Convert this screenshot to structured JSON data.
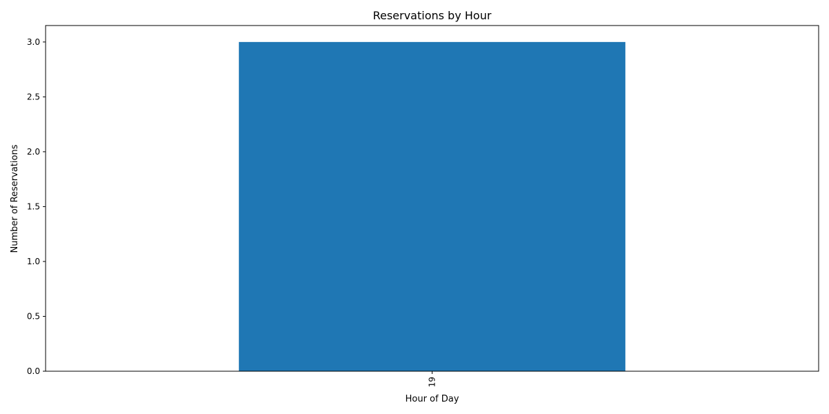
{
  "chart_data": {
    "type": "bar",
    "title": "Reservations by Hour",
    "xlabel": "Hour of Day",
    "ylabel": "Number of Reservations",
    "categories": [
      "19"
    ],
    "values": [
      3
    ],
    "ylim": [
      0,
      3.15
    ],
    "yticks": [
      0.0,
      0.5,
      1.0,
      1.5,
      2.0,
      2.5,
      3.0
    ],
    "ytick_labels": [
      "0.0",
      "0.5",
      "1.0",
      "1.5",
      "2.0",
      "2.5",
      "3.0"
    ],
    "grid": false,
    "legend": false,
    "bar_color": "#1f77b4"
  }
}
